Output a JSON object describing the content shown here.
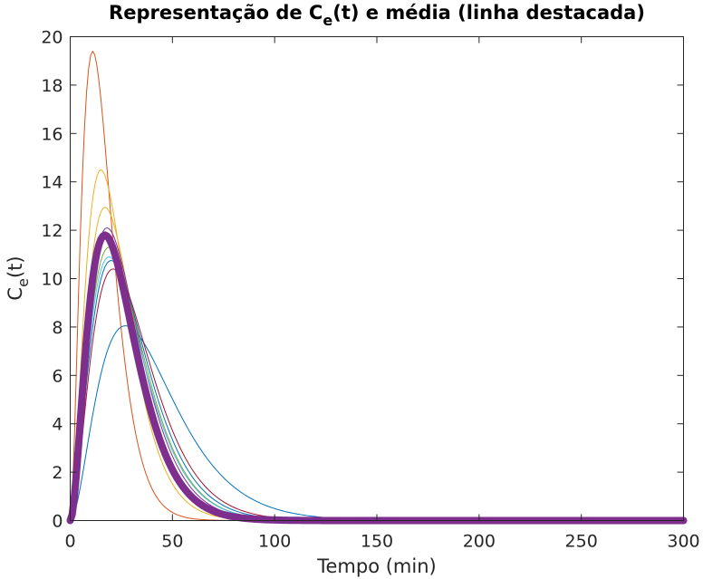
{
  "chart_data": {
    "type": "line",
    "title": {
      "prefix": "Representação de C",
      "subscript": "e",
      "suffix": "(t) e média (linha destacada)"
    },
    "xlabel": "Tempo (min)",
    "ylabel": {
      "main": "C",
      "subscript": "e",
      "suffix": "(t)"
    },
    "xlim": [
      0,
      300
    ],
    "ylim": [
      0,
      20
    ],
    "xticks": [
      0,
      50,
      100,
      150,
      200,
      250,
      300
    ],
    "yticks": [
      0,
      2,
      4,
      6,
      8,
      10,
      12,
      14,
      16,
      18,
      20
    ],
    "grid": false,
    "legend": null,
    "series": [
      {
        "color": "#0072BD",
        "peak_time": 27,
        "peak_value": 8.05,
        "highlight": false
      },
      {
        "color": "#D95319",
        "peak_time": 11,
        "peak_value": 19.4,
        "highlight": false
      },
      {
        "color": "#EDB120",
        "peak_time": 15,
        "peak_value": 14.5,
        "highlight": false
      },
      {
        "color": "#EDB120",
        "peak_time": 17,
        "peak_value": 12.95,
        "highlight": false
      },
      {
        "color": "#7E2F8E",
        "peak_time": 18,
        "peak_value": 12.1,
        "highlight": false
      },
      {
        "color": "#77AC30",
        "peak_time": 19,
        "peak_value": 11.3,
        "highlight": false
      },
      {
        "color": "#4DBEEE",
        "peak_time": 19,
        "peak_value": 10.9,
        "highlight": false
      },
      {
        "color": "#0072BD",
        "peak_time": 20,
        "peak_value": 10.75,
        "highlight": false
      },
      {
        "color": "#A2142F",
        "peak_time": 21,
        "peak_value": 10.4,
        "highlight": false
      },
      {
        "color": "#7E2F8E",
        "peak_time": 17,
        "peak_value": 11.8,
        "highlight": true
      }
    ]
  }
}
